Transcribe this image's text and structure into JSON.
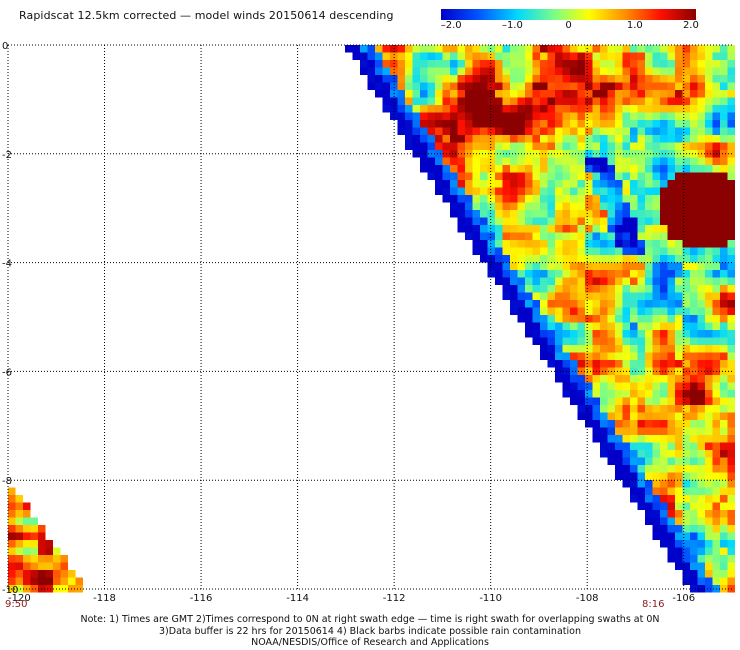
{
  "header": {
    "title": "Rapidscat 12.5km corrected — model winds 20150614 descending"
  },
  "colorbar": {
    "ticks": [
      "–2.0",
      "–1.0",
      "0",
      "1.0",
      "2.0"
    ],
    "values": [
      -2.0,
      -1.0,
      0,
      1.0,
      2.0
    ],
    "colors": [
      "#0000c8",
      "#0050ff",
      "#00d8ff",
      "#80ff80",
      "#ffff00",
      "#ff9000",
      "#ff1000",
      "#8b0000"
    ]
  },
  "map": {
    "lon_ticks": [
      "-120",
      "-118",
      "-116",
      "-114",
      "-112",
      "-110",
      "-108",
      "-106"
    ],
    "lon_values": [
      -120,
      -118,
      -116,
      -114,
      -112,
      -110,
      -108,
      -106
    ],
    "lat_ticks": [
      "0",
      "-2",
      "-4",
      "-6",
      "-8",
      "-10"
    ],
    "lat_values": [
      0,
      -2,
      -4,
      -6,
      -8,
      -10
    ],
    "lon_range": [
      -120,
      -105
    ],
    "lat_range": [
      -10,
      0
    ],
    "time_left": "9:50",
    "time_right": "8:16"
  },
  "footer": {
    "line1": "Note: 1) Times are GMT 2)Times correspond to 0N at right swath edge — time is right swath for overlapping swaths at 0N",
    "line2": "3)Data buffer is 22 hrs for 20150614 4) Black barbs indicate possible rain contamination",
    "line3": "NOAA/NESDIS/Office of Research and Applications"
  }
}
